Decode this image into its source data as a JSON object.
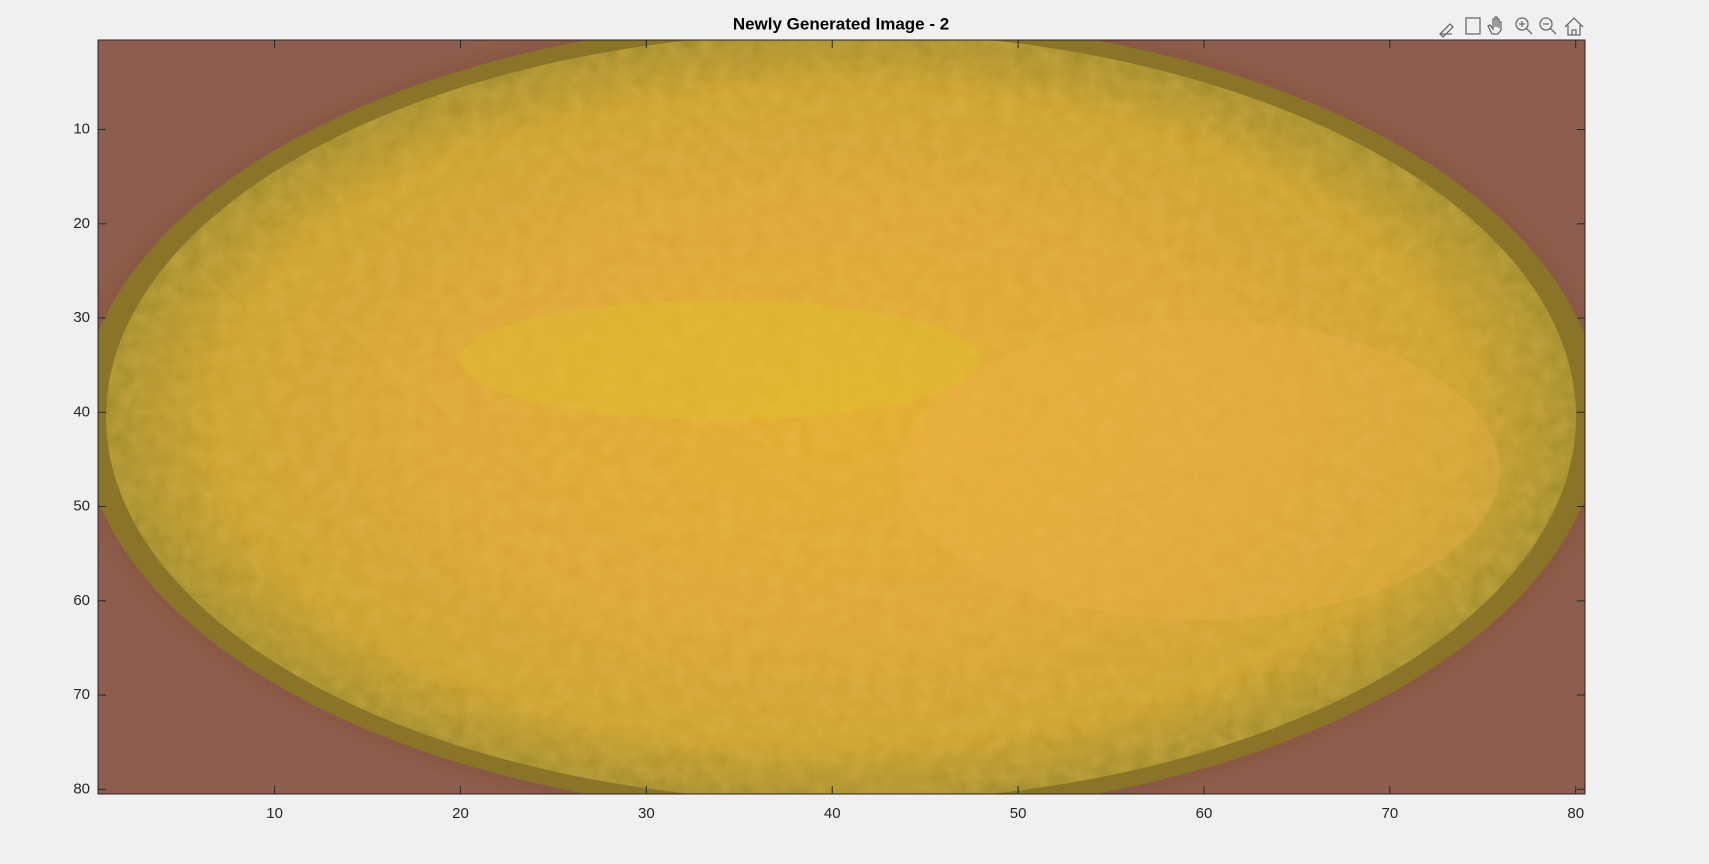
{
  "chart_data": {
    "type": "image",
    "title": "Newly Generated Image - 2",
    "xlim": [
      0.5,
      80.5
    ],
    "ylim": [
      0.5,
      80.5
    ],
    "y_reversed": true,
    "xticks": [
      10,
      20,
      30,
      40,
      50,
      60,
      70,
      80
    ],
    "yticks": [
      10,
      20,
      30,
      40,
      50,
      60,
      70,
      80
    ]
  }
}
